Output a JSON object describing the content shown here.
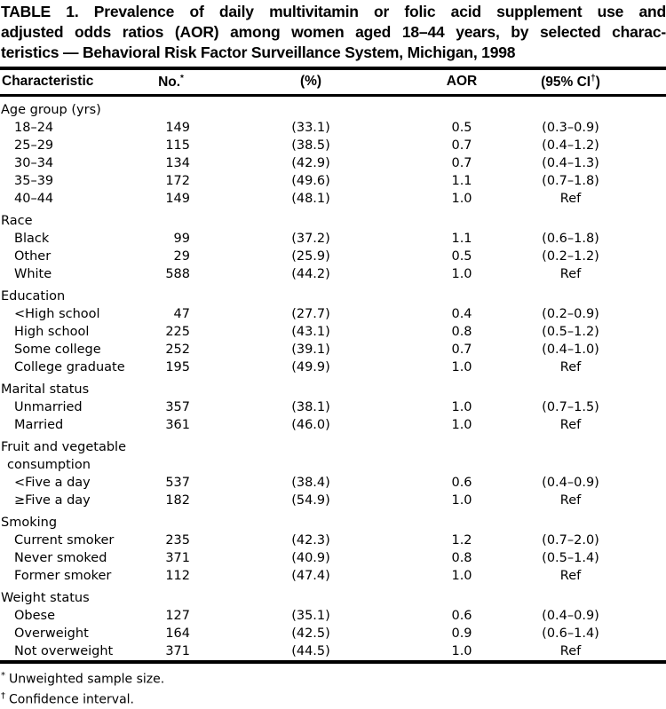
{
  "document": {
    "title_lines": [
      "TABLE 1. Prevalence of daily multivitamin or folic acid supplement use and",
      "adjusted odds ratios (AOR) among women aged 18–44 years, by selected charac-",
      "teristics — Behavioral Risk Factor Surveillance System, Michigan, 1998"
    ]
  },
  "table": {
    "columns": [
      {
        "text": "Characteristic"
      },
      {
        "text": "No.",
        "sup": "*"
      },
      {
        "text": "(%)"
      },
      {
        "text": "AOR"
      },
      {
        "text": "(95% CI",
        "sup": "†",
        "post": ")"
      }
    ],
    "sections": [
      {
        "label": "Age group (yrs)",
        "rows": [
          {
            "characteristic": "18–24",
            "no": "149",
            "pct": "(33.1)",
            "aor": "0.5",
            "ci": "(0.3–0.9)"
          },
          {
            "characteristic": "25–29",
            "no": "115",
            "pct": "(38.5)",
            "aor": "0.7",
            "ci": "(0.4–1.2)"
          },
          {
            "characteristic": "30–34",
            "no": "134",
            "pct": "(42.9)",
            "aor": "0.7",
            "ci": "(0.4–1.3)"
          },
          {
            "characteristic": "35–39",
            "no": "172",
            "pct": "(49.6)",
            "aor": "1.1",
            "ci": "(0.7–1.8)"
          },
          {
            "characteristic": "40–44",
            "no": "149",
            "pct": "(48.1)",
            "aor": "1.0",
            "ci": "Ref"
          }
        ]
      },
      {
        "label": "Race",
        "rows": [
          {
            "characteristic": "Black",
            "no": "99",
            "pct": "(37.2)",
            "aor": "1.1",
            "ci": "(0.6–1.8)"
          },
          {
            "characteristic": "Other",
            "no": "29",
            "pct": "(25.9)",
            "aor": "0.5",
            "ci": "(0.2–1.2)"
          },
          {
            "characteristic": "White",
            "no": "588",
            "pct": "(44.2)",
            "aor": "1.0",
            "ci": "Ref"
          }
        ]
      },
      {
        "label": "Education",
        "rows": [
          {
            "characteristic": "<High school",
            "no": "47",
            "pct": "(27.7)",
            "aor": "0.4",
            "ci": "(0.2–0.9)"
          },
          {
            "characteristic": "High school",
            "no": "225",
            "pct": "(43.1)",
            "aor": "0.8",
            "ci": "(0.5–1.2)"
          },
          {
            "characteristic": "Some college",
            "no": "252",
            "pct": "(39.1)",
            "aor": "0.7",
            "ci": "(0.4–1.0)"
          },
          {
            "characteristic": "College graduate",
            "no": "195",
            "pct": "(49.9)",
            "aor": "1.0",
            "ci": "Ref"
          }
        ]
      },
      {
        "label": "Marital status",
        "rows": [
          {
            "characteristic": "Unmarried",
            "no": "357",
            "pct": "(38.1)",
            "aor": "1.0",
            "ci": "(0.7–1.5)"
          },
          {
            "characteristic": "Married",
            "no": "361",
            "pct": "(46.0)",
            "aor": "1.0",
            "ci": "Ref"
          }
        ]
      },
      {
        "label": "Fruit and vegetable\nconsumption",
        "rows": [
          {
            "characteristic": "<Five a day",
            "no": "537",
            "pct": "(38.4)",
            "aor": "0.6",
            "ci": "(0.4–0.9)"
          },
          {
            "characteristic": "≥Five a day",
            "no": "182",
            "pct": "(54.9)",
            "aor": "1.0",
            "ci": "Ref"
          }
        ]
      },
      {
        "label": "Smoking",
        "rows": [
          {
            "characteristic": "Current smoker",
            "no": "235",
            "pct": "(42.3)",
            "aor": "1.2",
            "ci": "(0.7–2.0)"
          },
          {
            "characteristic": "Never smoked",
            "no": "371",
            "pct": "(40.9)",
            "aor": "0.8",
            "ci": "(0.5–1.4)"
          },
          {
            "characteristic": "Former smoker",
            "no": "112",
            "pct": "(47.4)",
            "aor": "1.0",
            "ci": "Ref"
          }
        ]
      },
      {
        "label": "Weight status",
        "rows": [
          {
            "characteristic": "Obese",
            "no": "127",
            "pct": "(35.1)",
            "aor": "0.6",
            "ci": "(0.4–0.9)"
          },
          {
            "characteristic": "Overweight",
            "no": "164",
            "pct": "(42.5)",
            "aor": "0.9",
            "ci": "(0.6–1.4)"
          },
          {
            "characteristic": "Not overweight",
            "no": "371",
            "pct": "(44.5)",
            "aor": "1.0",
            "ci": "Ref"
          }
        ]
      }
    ]
  },
  "footnotes": [
    {
      "marker": "*",
      "text": "Unweighted sample size."
    },
    {
      "marker": "†",
      "text": "Confidence interval."
    }
  ]
}
